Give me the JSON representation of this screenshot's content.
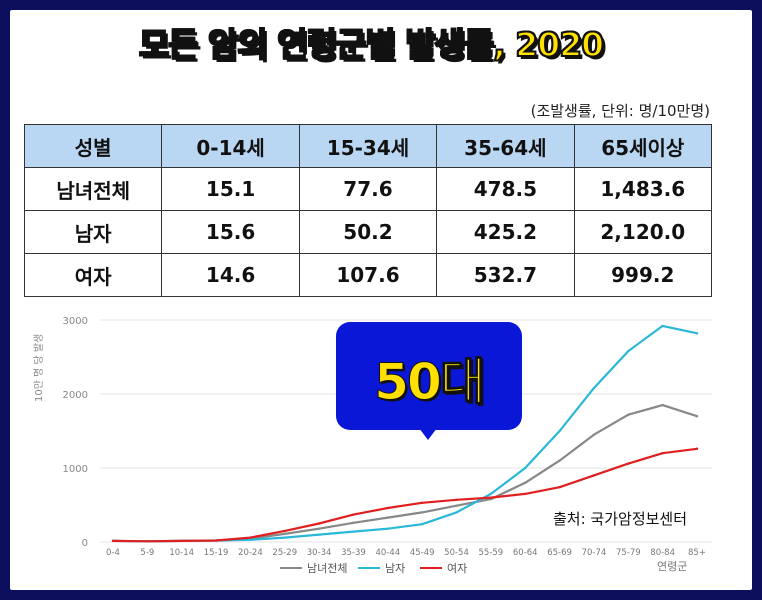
{
  "title": "모든 암의 연령군별 발생률, 2020",
  "table": {
    "unit_note": "(조발생률, 단위: 명/10만명)",
    "headers": [
      "성별",
      "0-14세",
      "15-34세",
      "35-64세",
      "65세이상"
    ],
    "rows": [
      [
        "남녀전체",
        "15.1",
        "77.6",
        "478.5",
        "1,483.6"
      ],
      [
        "남자",
        "15.6",
        "50.2",
        "425.2",
        "2,120.0"
      ],
      [
        "여자",
        "14.6",
        "107.6",
        "532.7",
        "999.2"
      ]
    ]
  },
  "callout": {
    "text": "50대"
  },
  "source": "출처: 국가암정보센터",
  "chart_data": {
    "type": "line",
    "ylabel": "10만 명 당 발생",
    "xlabel": "연령군",
    "ylim": [
      0,
      3000
    ],
    "yticks": [
      0,
      1000,
      2000,
      3000
    ],
    "ytick_labels": [
      "0",
      "1000",
      "2000",
      "3000"
    ],
    "categories": [
      "0-4",
      "5-9",
      "10-14",
      "15-19",
      "20-24",
      "25-29",
      "30-34",
      "35-39",
      "40-44",
      "45-49",
      "50-54",
      "55-59",
      "60-64",
      "65-69",
      "70-74",
      "75-79",
      "80-84",
      "85+"
    ],
    "grid": "horizontal",
    "legend_position": "bottom",
    "series": [
      {
        "name": "남녀전체",
        "color": "#888888",
        "values": [
          15,
          10,
          15,
          20,
          45,
          110,
          180,
          260,
          330,
          400,
          490,
          580,
          800,
          1100,
          1450,
          1720,
          1850,
          1700
        ]
      },
      {
        "name": "남자",
        "color": "#2ab7d8",
        "values": [
          15,
          10,
          15,
          20,
          30,
          60,
          100,
          140,
          180,
          240,
          400,
          650,
          1000,
          1500,
          2080,
          2580,
          2920,
          2820
        ]
      },
      {
        "name": "여자",
        "color": "#e02020",
        "values": [
          15,
          10,
          15,
          20,
          60,
          150,
          250,
          370,
          460,
          530,
          570,
          600,
          650,
          740,
          900,
          1060,
          1200,
          1260
        ]
      }
    ]
  }
}
